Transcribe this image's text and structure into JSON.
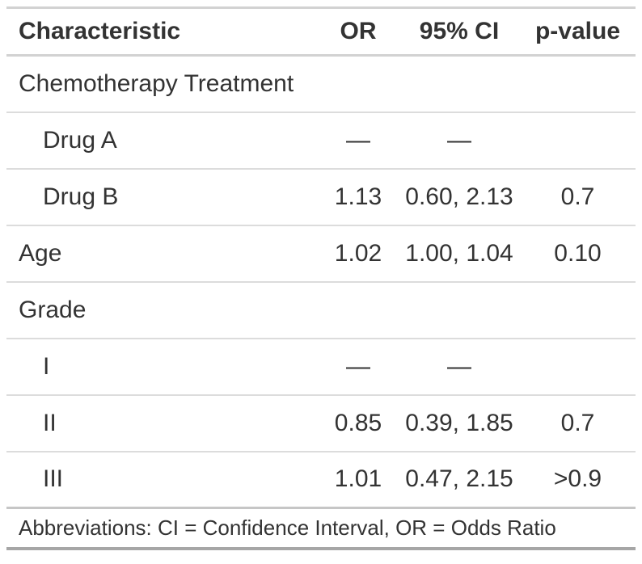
{
  "table": {
    "columns": [
      {
        "key": "label",
        "label": "Characteristic"
      },
      {
        "key": "or",
        "label": "OR"
      },
      {
        "key": "ci",
        "label": "95% CI"
      },
      {
        "key": "p",
        "label": "p-value"
      }
    ],
    "rows": [
      {
        "label": "Chemotherapy Treatment",
        "indent": false,
        "or": "",
        "ci": "",
        "p": ""
      },
      {
        "label": "Drug A",
        "indent": true,
        "or": "—",
        "ci": "—",
        "p": ""
      },
      {
        "label": "Drug B",
        "indent": true,
        "or": "1.13",
        "ci": "0.60, 2.13",
        "p": "0.7"
      },
      {
        "label": "Age",
        "indent": false,
        "or": "1.02",
        "ci": "1.00, 1.04",
        "p": "0.10"
      },
      {
        "label": "Grade",
        "indent": false,
        "or": "",
        "ci": "",
        "p": ""
      },
      {
        "label": "I",
        "indent": true,
        "or": "—",
        "ci": "—",
        "p": ""
      },
      {
        "label": "II",
        "indent": true,
        "or": "0.85",
        "ci": "0.39, 1.85",
        "p": "0.7"
      },
      {
        "label": "III",
        "indent": true,
        "or": "1.01",
        "ci": "0.47, 2.15",
        "p": ">0.9"
      }
    ],
    "footer": "Abbreviations: CI = Confidence Interval, OR = Odds Ratio"
  },
  "colors": {
    "text": "#333333",
    "border_light": "#dcdcdc",
    "border_header": "#d2d2d2",
    "border_body_bottom": "#c6c6c6",
    "border_table_bottom": "#a6a6a6"
  }
}
